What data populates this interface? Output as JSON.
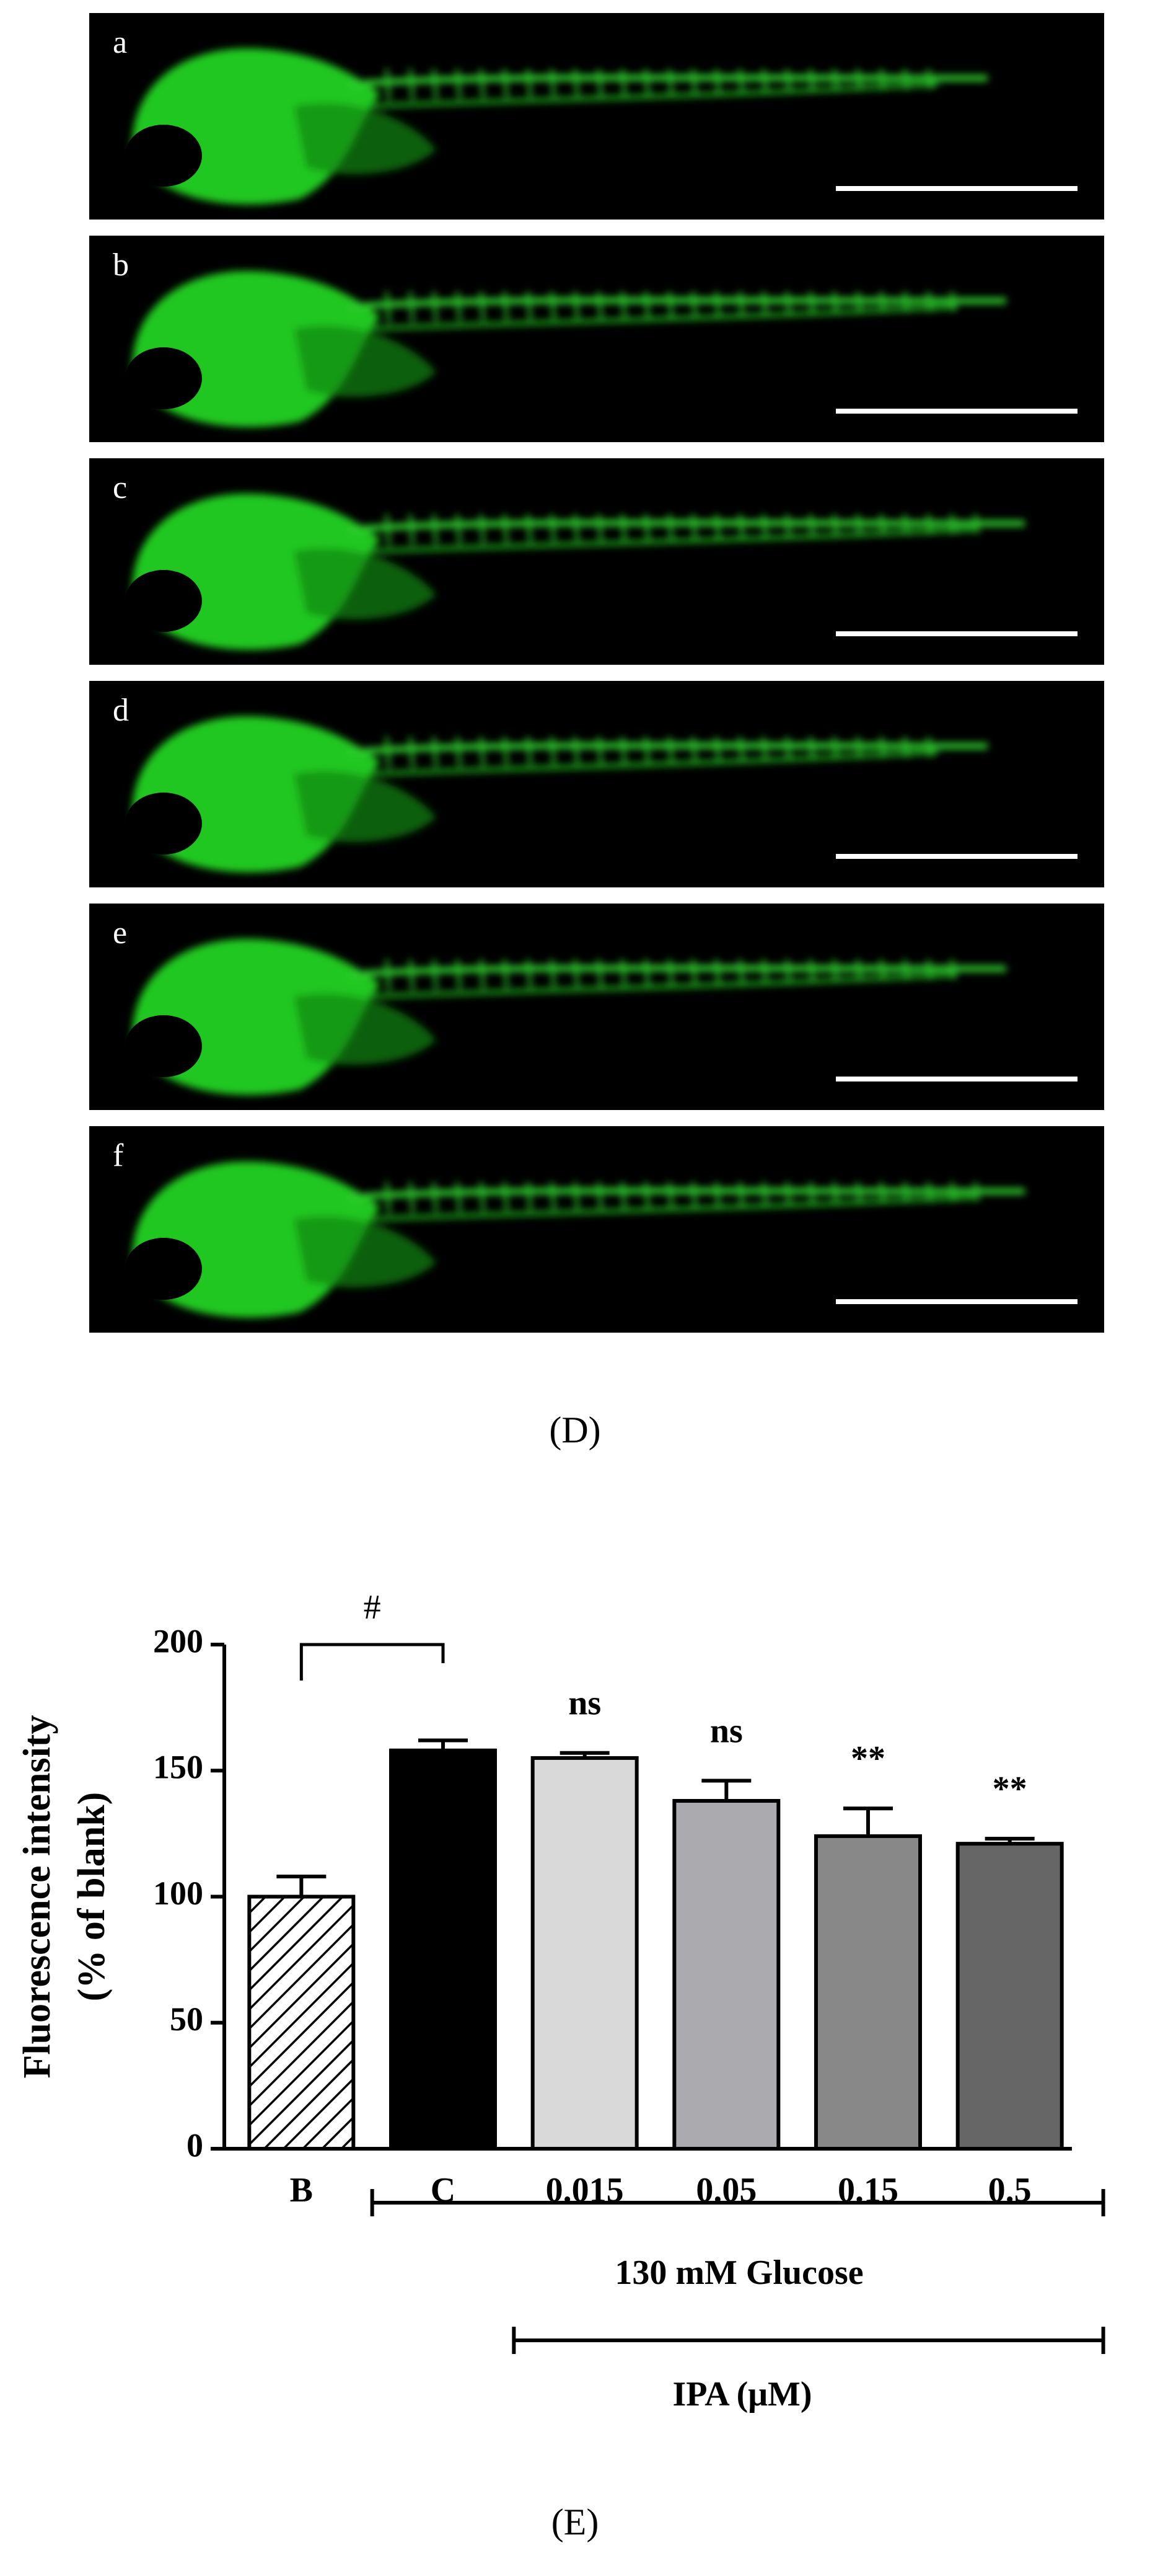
{
  "panels": {
    "labels": [
      "a",
      "b",
      "c",
      "d",
      "e",
      "f"
    ]
  },
  "captions": [
    "(D)",
    "(E)"
  ],
  "chart_data": {
    "type": "bar",
    "ylabel": [
      "Fluorescence intensity",
      "(% of blank)"
    ],
    "categories": [
      "B",
      "C",
      "0.015",
      "0.05",
      "0.15",
      "0.5"
    ],
    "values": [
      100,
      158,
      155,
      138,
      124,
      121
    ],
    "errors": [
      8,
      4,
      2,
      8,
      11,
      2
    ],
    "colors": [
      "#ffffff",
      "#000000",
      "#d9d9d9",
      "#aaaaaf",
      "#888888",
      "#666666"
    ],
    "hatched": [
      true,
      false,
      false,
      false,
      false,
      false
    ],
    "ylim": [
      0,
      200
    ],
    "yticks": [
      0,
      50,
      100,
      150,
      200
    ],
    "comparison": {
      "text": "#",
      "from": "B",
      "to": "C"
    },
    "annotations": [
      {
        "text": "ns",
        "category": "0.015"
      },
      {
        "text": "ns",
        "category": "0.05"
      },
      {
        "text": "**",
        "category": "0.15"
      },
      {
        "text": "**",
        "category": "0.5"
      }
    ],
    "groups": [
      {
        "label": "130 mM Glucose",
        "from": "C",
        "to": "0.5"
      },
      {
        "label": "IPA (μM)",
        "from": "0.015",
        "to": "0.5"
      }
    ]
  }
}
